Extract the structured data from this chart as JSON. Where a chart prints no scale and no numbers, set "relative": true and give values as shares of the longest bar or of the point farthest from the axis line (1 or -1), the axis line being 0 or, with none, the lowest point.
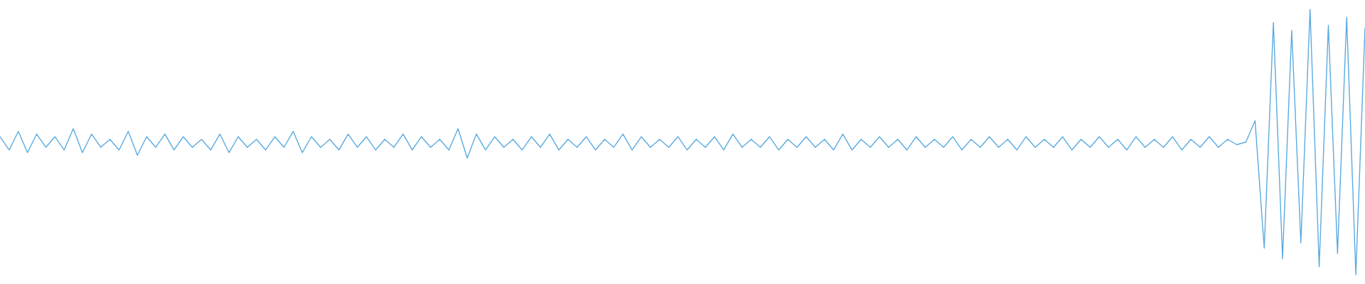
{
  "chart_data": {
    "type": "line",
    "relative": true,
    "color": "#5aaae0",
    "categories": [
      null,
      null,
      null,
      null,
      null,
      null,
      null,
      null,
      null,
      null,
      null,
      null,
      null,
      null,
      null,
      null,
      null,
      null,
      null,
      null,
      null,
      null,
      null,
      null,
      null,
      null,
      null,
      null,
      null,
      null,
      null,
      null,
      null,
      null,
      null,
      null,
      null,
      null,
      null,
      null,
      null,
      null,
      null,
      null,
      null,
      null,
      null,
      null,
      null,
      null,
      null,
      null,
      null,
      null,
      null,
      null,
      null,
      null,
      null,
      null,
      null,
      null,
      null,
      null,
      null,
      null,
      null,
      null,
      null,
      null,
      null,
      null,
      null,
      null,
      null,
      null,
      null,
      null,
      null,
      null,
      null,
      null,
      null,
      null,
      null,
      null,
      null,
      null,
      null,
      null,
      null,
      null,
      null,
      null,
      null,
      null,
      null,
      null,
      null,
      null,
      null,
      null,
      null,
      null,
      null,
      null,
      null,
      null,
      null,
      null,
      null,
      null,
      null,
      null,
      null,
      null,
      null,
      null,
      null,
      null,
      null,
      null,
      null,
      null,
      null,
      null,
      null,
      null,
      null,
      null,
      null,
      null,
      null,
      null,
      null,
      null,
      null,
      null,
      null,
      null,
      null,
      null,
      null,
      null,
      null,
      null,
      null,
      null,
      null,
      null
    ],
    "values": [
      0.52,
      0.47,
      0.54,
      0.46,
      0.53,
      0.48,
      0.52,
      0.47,
      0.55,
      0.46,
      0.53,
      0.48,
      0.51,
      0.47,
      0.54,
      0.45,
      0.52,
      0.48,
      0.53,
      0.47,
      0.52,
      0.48,
      0.51,
      0.47,
      0.53,
      0.46,
      0.52,
      0.48,
      0.51,
      0.47,
      0.52,
      0.48,
      0.54,
      0.46,
      0.52,
      0.48,
      0.51,
      0.47,
      0.53,
      0.48,
      0.52,
      0.47,
      0.51,
      0.48,
      0.53,
      0.47,
      0.52,
      0.48,
      0.51,
      0.47,
      0.55,
      0.44,
      0.53,
      0.47,
      0.52,
      0.48,
      0.51,
      0.47,
      0.52,
      0.48,
      0.53,
      0.47,
      0.51,
      0.48,
      0.52,
      0.47,
      0.51,
      0.48,
      0.53,
      0.47,
      0.52,
      0.48,
      0.51,
      0.48,
      0.52,
      0.47,
      0.51,
      0.48,
      0.52,
      0.47,
      0.53,
      0.48,
      0.51,
      0.48,
      0.52,
      0.47,
      0.51,
      0.48,
      0.52,
      0.48,
      0.51,
      0.47,
      0.53,
      0.47,
      0.51,
      0.48,
      0.52,
      0.48,
      0.51,
      0.47,
      0.52,
      0.48,
      0.51,
      0.48,
      0.52,
      0.47,
      0.51,
      0.48,
      0.52,
      0.48,
      0.51,
      0.47,
      0.52,
      0.48,
      0.51,
      0.48,
      0.52,
      0.47,
      0.51,
      0.48,
      0.52,
      0.48,
      0.51,
      0.47,
      0.52,
      0.48,
      0.51,
      0.48,
      0.52,
      0.47,
      0.51,
      0.48,
      0.52,
      0.48,
      0.51,
      0.49,
      0.5,
      0.58,
      0.1,
      0.95,
      0.06,
      0.92,
      0.12,
      1.0,
      0.03,
      0.94,
      0.08,
      0.97,
      0.0,
      0.93
    ]
  }
}
